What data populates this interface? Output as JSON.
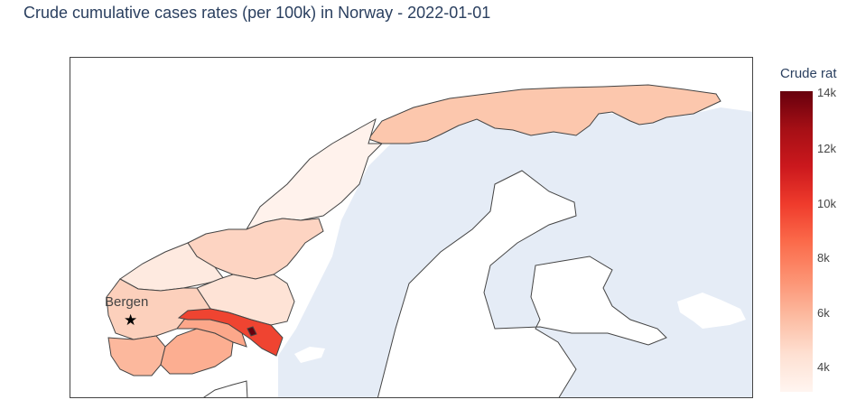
{
  "title": "Crude cumulative cases rates (per 100k) in Norway - 2022-01-01",
  "colorbar": {
    "title": "Crude rat",
    "ticks": [
      "14k",
      "12k",
      "10k",
      "8k",
      "6k",
      "4k"
    ],
    "min": 3000,
    "max": 14000
  },
  "marker": {
    "label": "Bergen",
    "symbol": "star-icon"
  },
  "colors": {
    "ocean": "#e5ecf6",
    "land": "#ffffff",
    "border": "#444444",
    "scale": [
      "#fff5f0",
      "#fee0d2",
      "#fcbba1",
      "#fc9272",
      "#fb6a4a",
      "#ef3b2c",
      "#cb181d",
      "#a50f15",
      "#67000d"
    ]
  }
}
